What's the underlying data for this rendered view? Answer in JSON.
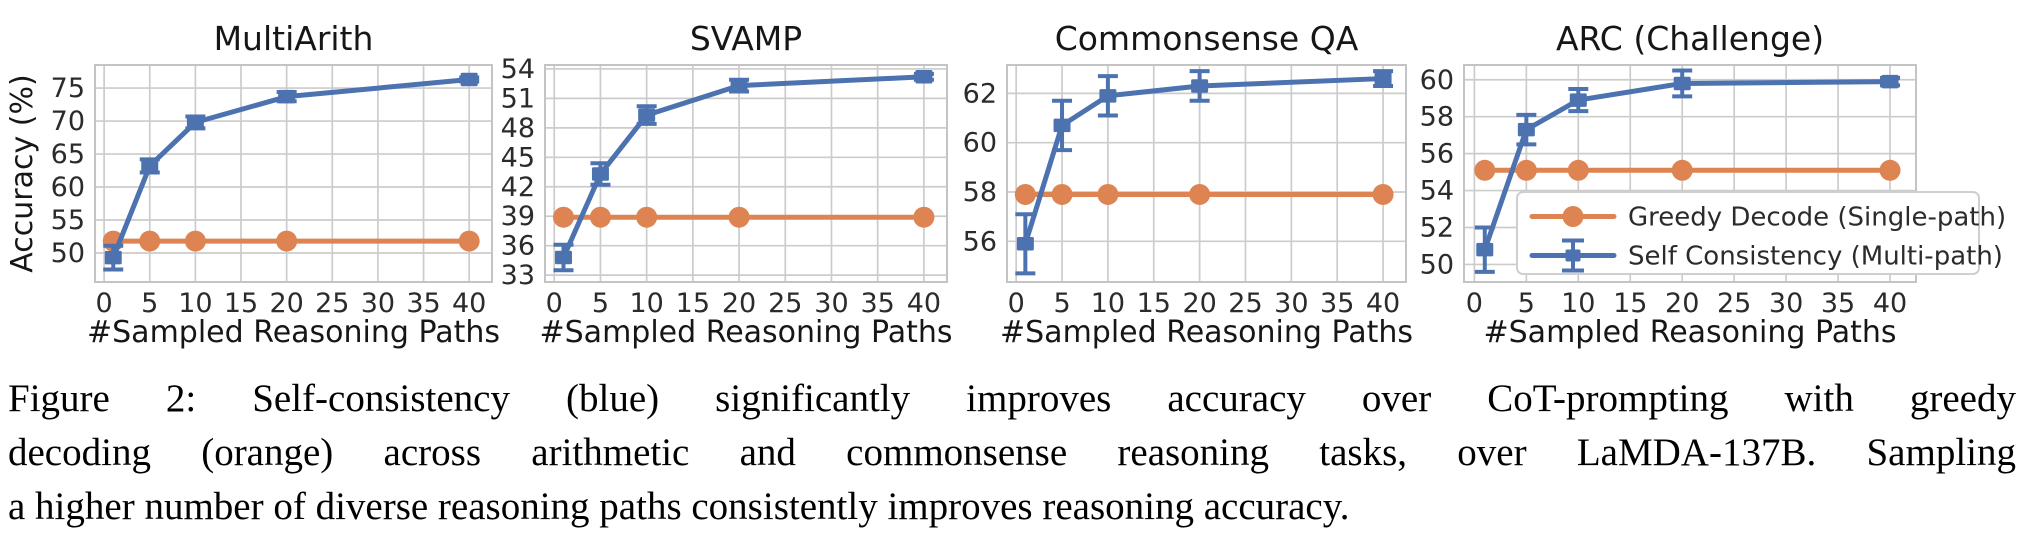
{
  "caption": {
    "lines": [
      "Figure 2: Self-consistency (blue) significantly improves accuracy over CoT-prompting with greedy",
      "decoding (orange) across arithmetic and commonsense reasoning tasks, over LaMDA-137B. Sampling",
      "a higher number of diverse reasoning paths consistently improves reasoning accuracy."
    ]
  },
  "axis": {
    "xlabel": "#Sampled Reasoning Paths",
    "ylabel": "Accuracy (%)"
  },
  "legend": {
    "position": "lower-right-of-last-chart",
    "items": [
      {
        "label": "Greedy Decode (Single-path)",
        "series": "greedy",
        "marker": "circle",
        "color": "#DD8452"
      },
      {
        "label": "Self Consistency (Multi-path)",
        "series": "self_consistency",
        "marker": "square-errorbar",
        "color": "#4C72B0"
      }
    ]
  },
  "colors": {
    "greedy": "#DD8452",
    "self_consistency": "#4C72B0",
    "grid": "#CCCCCC",
    "spine": "#C4C4C4",
    "text": "#2B2B2B"
  },
  "chart_data": [
    {
      "type": "line",
      "title": "MultiArith",
      "xlabel": "#Sampled Reasoning Paths",
      "ylabel": "Accuracy (%)",
      "x": [
        1,
        5,
        10,
        20,
        40
      ],
      "xticks": [
        0,
        5,
        10,
        15,
        20,
        25,
        30,
        35,
        40
      ],
      "yticks": [
        50,
        55,
        60,
        65,
        70,
        75
      ],
      "xlim": [
        -1,
        42.5
      ],
      "ylim": [
        45.6,
        78.5
      ],
      "grid": true,
      "show_legend": false,
      "series": [
        {
          "name": "Greedy Decode (Single-path)",
          "marker": "circle",
          "color": "#DD8452",
          "values": [
            51.8,
            51.8,
            51.8,
            51.8,
            51.8
          ]
        },
        {
          "name": "Self Consistency (Multi-path)",
          "marker": "square",
          "color": "#4C72B0",
          "values": [
            49.3,
            63.2,
            69.8,
            73.7,
            76.3
          ],
          "errors": [
            1.8,
            1.0,
            0.9,
            0.7,
            0.3
          ]
        }
      ]
    },
    {
      "type": "line",
      "title": "SVAMP",
      "xlabel": "#Sampled Reasoning Paths",
      "ylabel": "",
      "x": [
        1,
        5,
        10,
        20,
        40
      ],
      "xticks": [
        0,
        5,
        10,
        15,
        20,
        25,
        30,
        35,
        40
      ],
      "yticks": [
        33,
        36,
        39,
        42,
        45,
        48,
        51,
        54
      ],
      "xlim": [
        -1,
        42.5
      ],
      "ylim": [
        32.3,
        54.4
      ],
      "grid": true,
      "show_legend": false,
      "series": [
        {
          "name": "Greedy Decode (Single-path)",
          "marker": "circle",
          "color": "#DD8452",
          "values": [
            38.9,
            38.9,
            38.9,
            38.9,
            38.9
          ]
        },
        {
          "name": "Self Consistency (Multi-path)",
          "marker": "square",
          "color": "#4C72B0",
          "values": [
            34.8,
            43.3,
            49.3,
            52.3,
            53.2
          ],
          "errors": [
            1.3,
            1.1,
            0.9,
            0.6,
            0.3
          ]
        }
      ]
    },
    {
      "type": "line",
      "title": "Commonsense QA",
      "xlabel": "#Sampled Reasoning Paths",
      "ylabel": "",
      "x": [
        1,
        5,
        10,
        20,
        40
      ],
      "xticks": [
        0,
        5,
        10,
        15,
        20,
        25,
        30,
        35,
        40
      ],
      "yticks": [
        56,
        58,
        60,
        62
      ],
      "xlim": [
        -1,
        42.5
      ],
      "ylim": [
        54.35,
        63.15
      ],
      "grid": true,
      "show_legend": false,
      "series": [
        {
          "name": "Greedy Decode (Single-path)",
          "marker": "circle",
          "color": "#DD8452",
          "values": [
            57.9,
            57.9,
            57.9,
            57.9,
            57.9
          ]
        },
        {
          "name": "Self Consistency (Multi-path)",
          "marker": "square",
          "color": "#4C72B0",
          "values": [
            55.9,
            60.7,
            61.9,
            62.3,
            62.6
          ],
          "errors": [
            1.2,
            1.0,
            0.8,
            0.6,
            0.3
          ]
        }
      ]
    },
    {
      "type": "line",
      "title": "ARC (Challenge)",
      "xlabel": "#Sampled Reasoning Paths",
      "ylabel": "",
      "x": [
        1,
        5,
        10,
        20,
        40
      ],
      "xticks": [
        0,
        5,
        10,
        15,
        20,
        25,
        30,
        35,
        40
      ],
      "yticks": [
        50,
        52,
        54,
        56,
        58,
        60
      ],
      "xlim": [
        -1,
        42.5
      ],
      "ylim": [
        49.05,
        60.8
      ],
      "grid": true,
      "show_legend": true,
      "series": [
        {
          "name": "Greedy Decode (Single-path)",
          "marker": "circle",
          "color": "#DD8452",
          "values": [
            55.1,
            55.1,
            55.1,
            55.1,
            55.1
          ]
        },
        {
          "name": "Self Consistency (Multi-path)",
          "marker": "square",
          "color": "#4C72B0",
          "values": [
            50.8,
            57.3,
            58.9,
            59.8,
            59.9
          ],
          "errors": [
            1.2,
            0.8,
            0.6,
            0.7,
            0.2
          ]
        }
      ]
    }
  ]
}
